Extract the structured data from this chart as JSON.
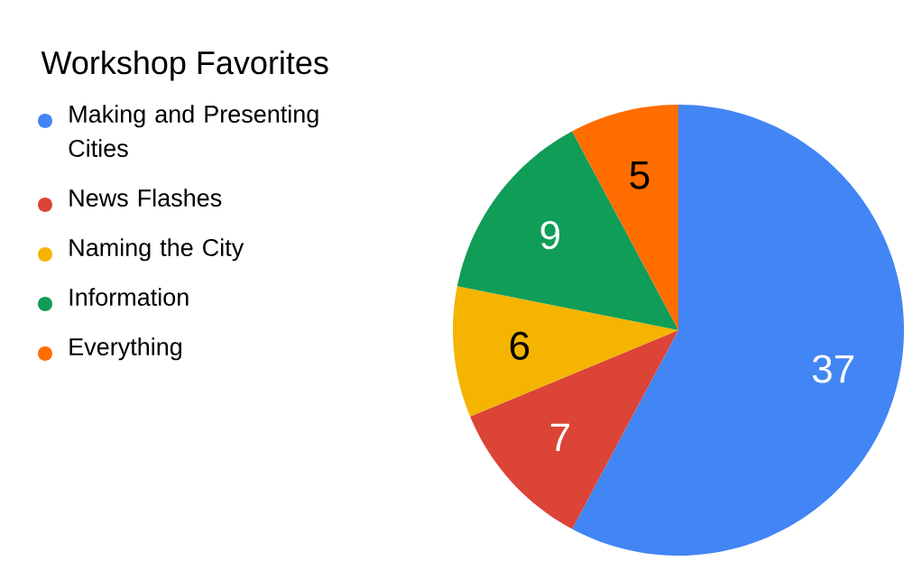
{
  "chart_data": {
    "type": "pie",
    "title": "Workshop Favorites",
    "categories": [
      "Making and Presenting Cities",
      "News Flashes",
      "Naming the City",
      "Information",
      "Everything"
    ],
    "values": [
      37,
      7,
      6,
      9,
      5
    ],
    "colors": [
      "#4285f4",
      "#db4437",
      "#f4b400",
      "#0f9d58",
      "#ff6d00"
    ],
    "data_labels": true,
    "legend": "left"
  }
}
